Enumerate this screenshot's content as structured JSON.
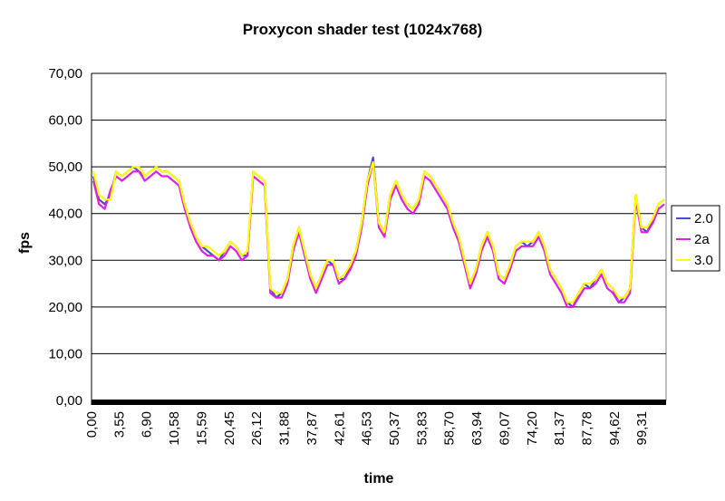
{
  "chart_data": {
    "type": "line",
    "title": "Proxycon shader test (1024x768)",
    "xlabel": "time",
    "ylabel": "fps",
    "ylim": [
      0,
      70
    ],
    "yticks": [
      "0,00",
      "10,00",
      "20,00",
      "30,00",
      "40,00",
      "50,00",
      "60,00",
      "70,00"
    ],
    "xticks": [
      "0,00",
      "3,55",
      "6,90",
      "10,58",
      "15,59",
      "20,45",
      "26,12",
      "31,88",
      "37,87",
      "42,61",
      "46,53",
      "50,37",
      "53,83",
      "58,70",
      "63,94",
      "69,07",
      "74,20",
      "81,37",
      "87,78",
      "94,62",
      "99,31"
    ],
    "grid": true,
    "legend_position": "right",
    "series": [
      {
        "name": "2.0",
        "color": "#4b4bc8",
        "values": [
          48,
          43,
          42,
          44,
          49,
          48,
          49,
          50,
          49,
          48,
          49,
          50,
          49,
          49,
          48,
          47,
          42,
          38,
          35,
          33,
          32,
          31,
          30,
          32,
          34,
          33,
          31,
          31,
          49,
          48,
          47,
          24,
          22,
          23,
          26,
          33,
          37,
          32,
          27,
          24,
          27,
          30,
          29,
          26,
          26,
          29,
          32,
          38,
          47,
          52,
          38,
          36,
          44,
          47,
          44,
          42,
          41,
          43,
          49,
          48,
          46,
          44,
          42,
          38,
          35,
          30,
          25,
          28,
          33,
          36,
          33,
          27,
          26,
          29,
          33,
          34,
          33,
          34,
          36,
          33,
          28,
          26,
          24,
          21,
          20,
          23,
          25,
          24,
          26,
          28,
          25,
          24,
          21,
          22,
          24,
          44,
          37,
          36,
          39,
          42,
          43
        ]
      },
      {
        "name": "2a",
        "color": "#e020e0",
        "values": [
          47,
          42,
          41,
          45,
          48,
          47,
          48,
          49,
          49,
          47,
          48,
          49,
          48,
          48,
          47,
          46,
          41,
          37,
          34,
          32,
          31,
          31,
          30,
          31,
          33,
          32,
          30,
          31,
          48,
          47,
          46,
          23,
          22,
          22,
          25,
          32,
          36,
          31,
          26,
          23,
          26,
          29,
          29,
          25,
          26,
          28,
          31,
          37,
          46,
          51,
          37,
          35,
          43,
          46,
          43,
          41,
          40,
          42,
          48,
          47,
          45,
          43,
          41,
          37,
          34,
          29,
          24,
          27,
          32,
          35,
          32,
          26,
          25,
          28,
          32,
          33,
          33,
          33,
          35,
          32,
          27,
          25,
          23,
          20,
          20,
          22,
          24,
          24,
          25,
          27,
          24,
          23,
          21,
          21,
          23,
          43,
          36,
          36,
          38,
          41,
          42
        ]
      },
      {
        "name": "3.0",
        "color": "#ffff00",
        "values": [
          49,
          44,
          43,
          43,
          49,
          48,
          49,
          50,
          50,
          48,
          49,
          50,
          49,
          49,
          48,
          47,
          42,
          38,
          35,
          33,
          33,
          32,
          31,
          32,
          34,
          33,
          31,
          32,
          49,
          48,
          47,
          24,
          23,
          23,
          26,
          33,
          37,
          32,
          27,
          24,
          27,
          30,
          30,
          26,
          27,
          29,
          32,
          38,
          47,
          51,
          38,
          36,
          44,
          47,
          44,
          42,
          41,
          43,
          49,
          48,
          46,
          44,
          42,
          38,
          35,
          30,
          25,
          28,
          33,
          36,
          33,
          27,
          26,
          29,
          33,
          34,
          34,
          34,
          36,
          33,
          28,
          26,
          24,
          21,
          21,
          23,
          25,
          25,
          26,
          28,
          25,
          24,
          22,
          22,
          24,
          44,
          37,
          37,
          39,
          42,
          43
        ]
      }
    ]
  }
}
